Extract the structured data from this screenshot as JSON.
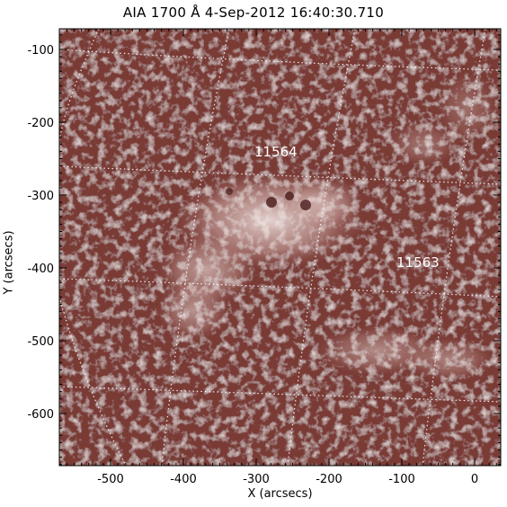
{
  "title": "AIA 1700 Å  4-Sep-2012 16:40:30.710",
  "axes": {
    "xlabel": "X (arcsecs)",
    "ylabel": "Y (arcsecs)",
    "x_ticks": [
      "-500",
      "-400",
      "-300",
      "-200",
      "-100",
      "0"
    ],
    "y_ticks": [
      "-100",
      "-200",
      "-300",
      "-400",
      "-500",
      "-600"
    ]
  },
  "image": {
    "colormap_base": "#7a3a36",
    "colormap_bright": "#f1e3e1",
    "grid": "dotted white heliographic grid"
  },
  "annotations": [
    {
      "label": "11564"
    },
    {
      "label": "11563"
    }
  ]
}
